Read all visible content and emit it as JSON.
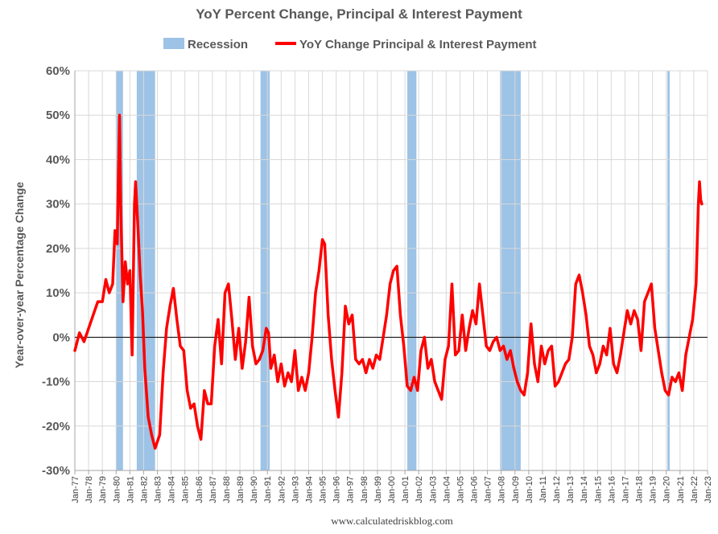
{
  "chart_data": {
    "type": "line",
    "title": "YoY Percent Change, Principal & Interest Payment",
    "ylabel": "Year-over-year Percentage Change",
    "xlabel": "",
    "source": "www.calculatedriskblog.com",
    "ylim": [
      -30,
      60
    ],
    "xlim": [
      "1977-01",
      "2023-01"
    ],
    "yticks": [
      -30,
      -20,
      -10,
      0,
      10,
      20,
      30,
      40,
      50,
      60
    ],
    "ytick_labels": [
      "-30%",
      "-20%",
      "-10%",
      "0%",
      "10%",
      "20%",
      "30%",
      "40%",
      "50%",
      "60%"
    ],
    "xtick_labels": [
      "Jan-77",
      "Jan-78",
      "Jan-79",
      "Jan-80",
      "Jan-81",
      "Jan-82",
      "Jan-83",
      "Jan-84",
      "Jan-85",
      "Jan-86",
      "Jan-87",
      "Jan-88",
      "Jan-89",
      "Jan-90",
      "Jan-91",
      "Jan-92",
      "Jan-93",
      "Jan-94",
      "Jan-95",
      "Jan-96",
      "Jan-97",
      "Jan-98",
      "Jan-99",
      "Jan-00",
      "Jan-01",
      "Jan-02",
      "Jan-03",
      "Jan-04",
      "Jan-05",
      "Jan-06",
      "Jan-07",
      "Jan-08",
      "Jan-09",
      "Jan-10",
      "Jan-11",
      "Jan-12",
      "Jan-13",
      "Jan-14",
      "Jan-15",
      "Jan-16",
      "Jan-17",
      "Jan-18",
      "Jan-19",
      "Jan-20",
      "Jan-21",
      "Jan-22",
      "Jan-23"
    ],
    "grid": true,
    "legend": {
      "position": "top",
      "entries": [
        {
          "name": "Recession",
          "kind": "band",
          "color": "#9dc3e6"
        },
        {
          "name": "YoY Change Principal & Interest Payment",
          "kind": "line",
          "color": "#ff0000"
        }
      ]
    },
    "recessions": [
      [
        "1980-01",
        "1980-07"
      ],
      [
        "1981-07",
        "1982-11"
      ],
      [
        "1990-07",
        "1991-03"
      ],
      [
        "2001-03",
        "2001-11"
      ],
      [
        "2007-12",
        "2009-06"
      ],
      [
        "2020-02",
        "2020-04"
      ]
    ],
    "series": [
      {
        "name": "YoY Change Principal & Interest Payment",
        "color": "#ff0000",
        "points": [
          [
            "1977-01",
            -3
          ],
          [
            "1977-05",
            1
          ],
          [
            "1977-09",
            -1
          ],
          [
            "1978-01",
            2
          ],
          [
            "1978-05",
            5
          ],
          [
            "1978-09",
            8
          ],
          [
            "1979-01",
            8
          ],
          [
            "1979-04",
            13
          ],
          [
            "1979-07",
            10
          ],
          [
            "1979-10",
            12
          ],
          [
            "1979-12",
            24
          ],
          [
            "1980-02",
            21
          ],
          [
            "1980-03",
            37
          ],
          [
            "1980-04",
            50
          ],
          [
            "1980-05",
            30
          ],
          [
            "1980-07",
            8
          ],
          [
            "1980-09",
            17
          ],
          [
            "1980-11",
            12
          ],
          [
            "1981-01",
            15
          ],
          [
            "1981-03",
            -4
          ],
          [
            "1981-05",
            30
          ],
          [
            "1981-06",
            35
          ],
          [
            "1981-08",
            25
          ],
          [
            "1981-10",
            14
          ],
          [
            "1981-12",
            6
          ],
          [
            "1982-02",
            -7
          ],
          [
            "1982-05",
            -18
          ],
          [
            "1982-08",
            -22
          ],
          [
            "1982-11",
            -25
          ],
          [
            "1983-03",
            -22
          ],
          [
            "1983-06",
            -8
          ],
          [
            "1983-09",
            2
          ],
          [
            "1983-12",
            7
          ],
          [
            "1984-03",
            11
          ],
          [
            "1984-06",
            4
          ],
          [
            "1984-09",
            -2
          ],
          [
            "1984-12",
            -3
          ],
          [
            "1985-03",
            -12
          ],
          [
            "1985-06",
            -16
          ],
          [
            "1985-09",
            -15
          ],
          [
            "1985-12",
            -20
          ],
          [
            "1986-03",
            -23
          ],
          [
            "1986-06",
            -12
          ],
          [
            "1986-09",
            -15
          ],
          [
            "1986-12",
            -15
          ],
          [
            "1987-03",
            -2
          ],
          [
            "1987-06",
            4
          ],
          [
            "1987-09",
            -6
          ],
          [
            "1987-12",
            10
          ],
          [
            "1988-03",
            12
          ],
          [
            "1988-06",
            4
          ],
          [
            "1988-09",
            -5
          ],
          [
            "1988-12",
            2
          ],
          [
            "1989-03",
            -7
          ],
          [
            "1989-06",
            -1
          ],
          [
            "1989-09",
            9
          ],
          [
            "1989-12",
            -2
          ],
          [
            "1990-03",
            -6
          ],
          [
            "1990-06",
            -5
          ],
          [
            "1990-09",
            -3
          ],
          [
            "1990-12",
            2
          ],
          [
            "1991-02",
            1
          ],
          [
            "1991-04",
            -7
          ],
          [
            "1991-07",
            -4
          ],
          [
            "1991-10",
            -10
          ],
          [
            "1992-01",
            -6
          ],
          [
            "1992-04",
            -11
          ],
          [
            "1992-07",
            -8
          ],
          [
            "1992-10",
            -10
          ],
          [
            "1993-01",
            -3
          ],
          [
            "1993-04",
            -12
          ],
          [
            "1993-07",
            -9
          ],
          [
            "1993-10",
            -12
          ],
          [
            "1994-01",
            -8
          ],
          [
            "1994-04",
            0
          ],
          [
            "1994-07",
            10
          ],
          [
            "1994-10",
            15
          ],
          [
            "1995-01",
            22
          ],
          [
            "1995-03",
            21
          ],
          [
            "1995-06",
            5
          ],
          [
            "1995-09",
            -5
          ],
          [
            "1995-12",
            -12
          ],
          [
            "1996-03",
            -18
          ],
          [
            "1996-06",
            -8
          ],
          [
            "1996-09",
            7
          ],
          [
            "1996-12",
            3
          ],
          [
            "1997-03",
            5
          ],
          [
            "1997-06",
            -5
          ],
          [
            "1997-09",
            -6
          ],
          [
            "1997-12",
            -5
          ],
          [
            "1998-03",
            -8
          ],
          [
            "1998-06",
            -5
          ],
          [
            "1998-09",
            -7
          ],
          [
            "1998-12",
            -4
          ],
          [
            "1999-03",
            -5
          ],
          [
            "1999-06",
            0
          ],
          [
            "1999-09",
            5
          ],
          [
            "1999-12",
            12
          ],
          [
            "2000-03",
            15
          ],
          [
            "2000-06",
            16
          ],
          [
            "2000-09",
            5
          ],
          [
            "2000-12",
            -2
          ],
          [
            "2001-03",
            -11
          ],
          [
            "2001-06",
            -12
          ],
          [
            "2001-09",
            -9
          ],
          [
            "2001-12",
            -12
          ],
          [
            "2002-03",
            -3
          ],
          [
            "2002-06",
            0
          ],
          [
            "2002-09",
            -7
          ],
          [
            "2002-12",
            -5
          ],
          [
            "2003-03",
            -10
          ],
          [
            "2003-06",
            -12
          ],
          [
            "2003-09",
            -14
          ],
          [
            "2003-12",
            -5
          ],
          [
            "2004-03",
            -2
          ],
          [
            "2004-06",
            12
          ],
          [
            "2004-09",
            -4
          ],
          [
            "2004-12",
            -3
          ],
          [
            "2005-03",
            5
          ],
          [
            "2005-06",
            -3
          ],
          [
            "2005-09",
            2
          ],
          [
            "2005-12",
            6
          ],
          [
            "2006-03",
            3
          ],
          [
            "2006-06",
            12
          ],
          [
            "2006-09",
            5
          ],
          [
            "2006-12",
            -2
          ],
          [
            "2007-03",
            -3
          ],
          [
            "2007-06",
            -1
          ],
          [
            "2007-09",
            0
          ],
          [
            "2007-12",
            -3
          ],
          [
            "2008-03",
            -2
          ],
          [
            "2008-06",
            -5
          ],
          [
            "2008-09",
            -3
          ],
          [
            "2008-12",
            -7
          ],
          [
            "2009-03",
            -10
          ],
          [
            "2009-06",
            -12
          ],
          [
            "2009-09",
            -13
          ],
          [
            "2009-12",
            -8
          ],
          [
            "2010-03",
            3
          ],
          [
            "2010-06",
            -6
          ],
          [
            "2010-09",
            -10
          ],
          [
            "2010-12",
            -2
          ],
          [
            "2011-03",
            -6
          ],
          [
            "2011-06",
            -3
          ],
          [
            "2011-09",
            -2
          ],
          [
            "2011-12",
            -11
          ],
          [
            "2012-03",
            -10
          ],
          [
            "2012-06",
            -8
          ],
          [
            "2012-09",
            -6
          ],
          [
            "2012-12",
            -5
          ],
          [
            "2013-03",
            0
          ],
          [
            "2013-06",
            12
          ],
          [
            "2013-09",
            14
          ],
          [
            "2013-12",
            10
          ],
          [
            "2014-03",
            5
          ],
          [
            "2014-06",
            -2
          ],
          [
            "2014-09",
            -4
          ],
          [
            "2014-12",
            -8
          ],
          [
            "2015-03",
            -6
          ],
          [
            "2015-06",
            -2
          ],
          [
            "2015-09",
            -4
          ],
          [
            "2015-12",
            2
          ],
          [
            "2016-03",
            -6
          ],
          [
            "2016-06",
            -8
          ],
          [
            "2016-09",
            -4
          ],
          [
            "2016-12",
            1
          ],
          [
            "2017-03",
            6
          ],
          [
            "2017-06",
            3
          ],
          [
            "2017-09",
            6
          ],
          [
            "2017-12",
            4
          ],
          [
            "2018-03",
            -3
          ],
          [
            "2018-06",
            8
          ],
          [
            "2018-09",
            10
          ],
          [
            "2018-12",
            12
          ],
          [
            "2019-03",
            2
          ],
          [
            "2019-06",
            -3
          ],
          [
            "2019-09",
            -8
          ],
          [
            "2019-12",
            -12
          ],
          [
            "2020-03",
            -13
          ],
          [
            "2020-06",
            -9
          ],
          [
            "2020-09",
            -10
          ],
          [
            "2020-12",
            -8
          ],
          [
            "2021-03",
            -12
          ],
          [
            "2021-06",
            -4
          ],
          [
            "2021-09",
            0
          ],
          [
            "2021-12",
            4
          ],
          [
            "2022-03",
            12
          ],
          [
            "2022-05",
            30
          ],
          [
            "2022-06",
            35
          ],
          [
            "2022-07",
            31
          ],
          [
            "2022-08",
            30
          ]
        ]
      }
    ]
  }
}
